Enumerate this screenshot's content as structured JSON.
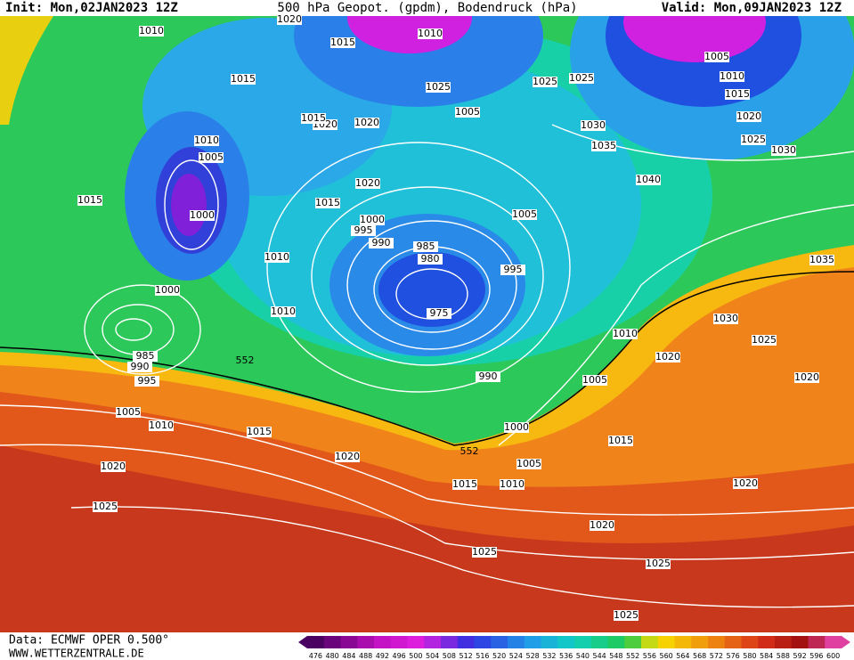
{
  "header": {
    "init": "Init: Mon,02JAN2023 12Z",
    "title": "500 hPa Geopot. (gpdm), Bodendruck (hPa)",
    "valid": "Valid: Mon,09JAN2023 12Z"
  },
  "map": {
    "contour_labels": [
      "552",
      "552"
    ],
    "pressure_labels": [
      "1010",
      "1020",
      "1015",
      "1010",
      "1005",
      "1010",
      "1015",
      "1025",
      "1025",
      "1005",
      "1010",
      "1015",
      "1020",
      "1025",
      "1030",
      "1035",
      "1030",
      "1040",
      "1020",
      "1015",
      "1020",
      "1015",
      "1005",
      "1000",
      "995",
      "990",
      "985",
      "980",
      "975",
      "995",
      "1005",
      "1010",
      "1015",
      "1000",
      "1000",
      "985",
      "990",
      "995",
      "1005",
      "1010",
      "1015",
      "1010",
      "1020",
      "1015",
      "990",
      "1000",
      "1005",
      "1015",
      "1010",
      "1005",
      "1020",
      "1025",
      "1020",
      "1025",
      "1020",
      "1025",
      "1030",
      "1025",
      "1020",
      "1035",
      "1010",
      "1020",
      "1025",
      "1025",
      "1020"
    ]
  },
  "colorbar": {
    "labels": [
      "476",
      "480",
      "484",
      "488",
      "492",
      "496",
      "500",
      "504",
      "508",
      "512",
      "516",
      "520",
      "524",
      "528",
      "532",
      "536",
      "540",
      "544",
      "548",
      "552",
      "556",
      "560",
      "564",
      "568",
      "572",
      "576",
      "580",
      "584",
      "588",
      "592",
      "596",
      "600"
    ]
  },
  "footer": {
    "data": "Data: ECMWF OPER 0.500°",
    "site": "WWW.WETTERZENTRALE.DE"
  }
}
